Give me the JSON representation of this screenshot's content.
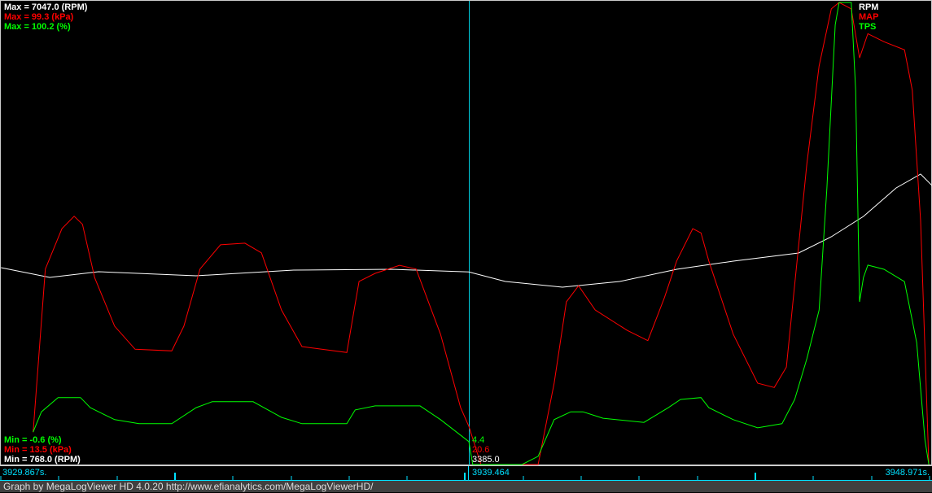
{
  "chart_data": {
    "type": "line",
    "x_range": [
      3929.867,
      3948.971
    ],
    "cursor": {
      "time": "3939.464",
      "values": {
        "TPS": "4.4",
        "MAP": "20.6",
        "RPM": "3385.0"
      }
    },
    "axis": {
      "start_label": "3929.867s.",
      "cursor_label": "3939.464",
      "end_label": "3948.971s."
    },
    "series": [
      {
        "name": "RPM",
        "color": "#ffffff",
        "max_label": "Max = 7047.0 (RPM)",
        "min_label": "Min = 768.0 (RPM)",
        "range": [
          768.0,
          7047.0
        ],
        "t": [
          3929.87,
          3930.87,
          3931.87,
          3933.87,
          3935.87,
          3937.88,
          3939.46,
          3940.21,
          3941.38,
          3942.55,
          3943.72,
          3944.88,
          3946.22,
          3946.89,
          3947.55,
          3948.22,
          3948.72,
          3948.97
        ],
        "values": [
          3443,
          3311,
          3388,
          3333,
          3410,
          3421,
          3385,
          3255,
          3178,
          3255,
          3421,
          3532,
          3642,
          3863,
          4140,
          4527,
          4715,
          4549
        ]
      },
      {
        "name": "MAP",
        "color": "#ff0000",
        "max_label": "Max = 99.3 (kPa)",
        "min_label": "Min = 13.5 (kPa)",
        "range": [
          13.5,
          99.3
        ],
        "t": [
          3930.53,
          3930.78,
          3931.12,
          3931.37,
          3931.54,
          3931.79,
          3932.2,
          3932.62,
          3933.37,
          3933.62,
          3933.95,
          3934.37,
          3934.87,
          3935.21,
          3935.62,
          3936.04,
          3936.96,
          3937.21,
          3937.54,
          3938.04,
          3938.38,
          3938.88,
          3939.29,
          3939.46,
          3939.71,
          3940.88,
          3941.21,
          3941.46,
          3941.71,
          3942.05,
          3942.71,
          3943.13,
          3943.47,
          3943.72,
          3944.05,
          3944.22,
          3944.38,
          3944.88,
          3945.38,
          3945.72,
          3945.97,
          3946.39,
          3946.64,
          3946.89,
          3947.05,
          3947.3,
          3947.47,
          3947.64,
          3947.97,
          3948.39,
          3948.55,
          3948.72,
          3948.89
        ],
        "values": [
          19.5,
          49.8,
          57.3,
          59.6,
          58.1,
          48.2,
          39.2,
          34.9,
          34.6,
          39.2,
          49.8,
          54.3,
          54.6,
          52.8,
          42.2,
          35.4,
          34.3,
          47.5,
          49.0,
          50.5,
          49.8,
          37.7,
          24.1,
          20.6,
          13.5,
          13.5,
          28.6,
          43.7,
          46.7,
          42.2,
          38.4,
          36.5,
          44.5,
          51.3,
          57.3,
          56.5,
          51.3,
          37.7,
          28.6,
          27.8,
          31.6,
          69.4,
          87.5,
          98.1,
          99.3,
          98.1,
          89.0,
          93.5,
          92.0,
          90.5,
          83.0,
          58.8,
          13.5
        ]
      },
      {
        "name": "TPS",
        "color": "#00ff00",
        "max_label": "Max = 100.2 (%)",
        "min_label": "Min = -0.6 (%)",
        "range": [
          -0.6,
          100.2
        ],
        "t": [
          3930.53,
          3930.7,
          3931.04,
          3931.5,
          3931.7,
          3932.2,
          3932.7,
          3933.37,
          3933.87,
          3934.2,
          3935.04,
          3935.62,
          3936.04,
          3936.96,
          3937.13,
          3937.54,
          3938.46,
          3938.88,
          3939.46,
          3939.54,
          3940.55,
          3940.88,
          3941.21,
          3941.55,
          3941.8,
          3942.21,
          3943.05,
          3943.55,
          3943.8,
          3944.22,
          3944.38,
          3944.88,
          3945.38,
          3945.88,
          3946.14,
          3946.39,
          3946.64,
          3946.8,
          3946.97,
          3947.05,
          3947.3,
          3947.39,
          3947.47,
          3947.55,
          3947.64,
          3947.97,
          3948.39,
          3948.64,
          3948.81,
          3948.89
        ],
        "values": [
          6.5,
          10.9,
          14.0,
          14.0,
          11.8,
          9.2,
          8.3,
          8.3,
          11.8,
          13.1,
          13.1,
          9.7,
          8.3,
          8.3,
          11.3,
          12.2,
          12.2,
          9.2,
          4.4,
          -0.6,
          -0.6,
          1.2,
          9.2,
          10.9,
          10.9,
          9.5,
          8.6,
          11.8,
          13.6,
          14.0,
          11.8,
          9.2,
          7.4,
          8.3,
          13.6,
          22.5,
          33.1,
          59.8,
          95.3,
          100.2,
          100.2,
          81.1,
          34.9,
          40.2,
          42.9,
          42.0,
          39.3,
          26.0,
          4.7,
          -0.6
        ]
      }
    ]
  },
  "footer": "Graph by MegaLogViewer HD 4.0.20 http://www.efianalytics.com/MegaLogViewerHD/"
}
